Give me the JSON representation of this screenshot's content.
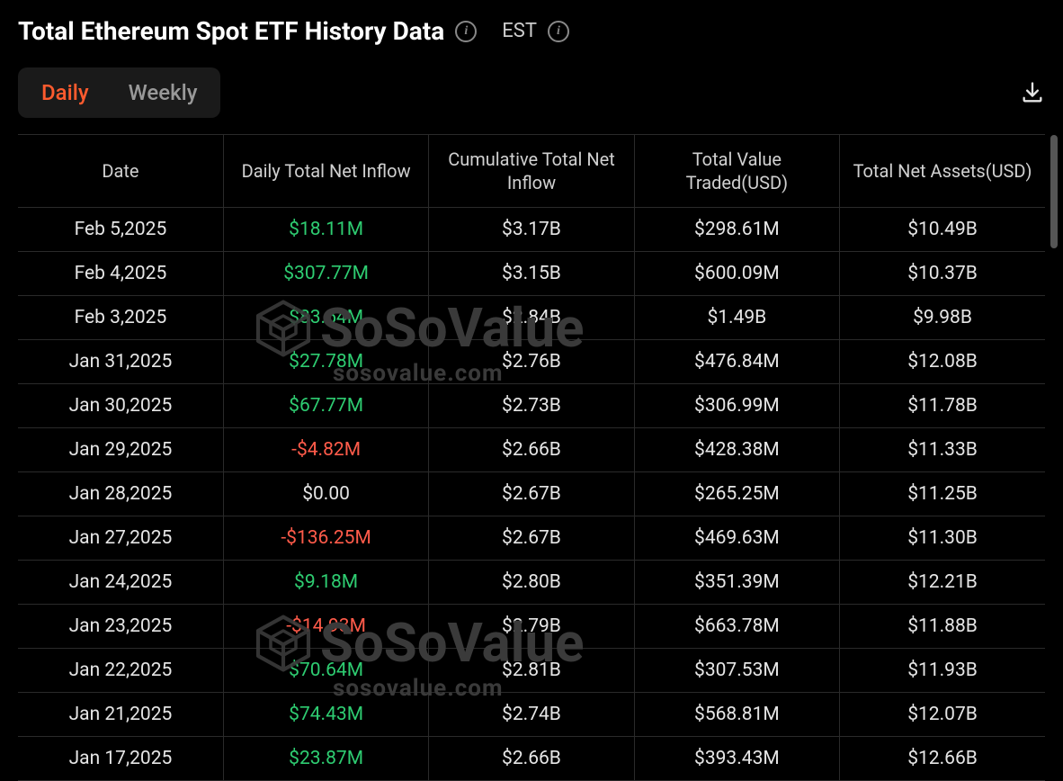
{
  "header": {
    "title": "Total Ethereum Spot ETF History Data",
    "timezone": "EST"
  },
  "tabs": {
    "daily": "Daily",
    "weekly": "Weekly",
    "active": "daily"
  },
  "table": {
    "type": "table",
    "colors": {
      "background": "#000000",
      "text": "#e5e5e5",
      "positive": "#2ecc71",
      "negative": "#ff5b4a",
      "border": "#2a2a2a",
      "accent": "#ff5b2e"
    },
    "columns": [
      "Date",
      "Daily Total Net Inflow",
      "Cumulative Total Net Inflow",
      "Total Value Traded(USD)",
      "Total Net Assets(USD)"
    ],
    "column_widths": [
      "20%",
      "20%",
      "20%",
      "20%",
      "20%"
    ],
    "rows": [
      {
        "date": "Feb 5,2025",
        "inflow": "$18.11M",
        "inflow_dir": "pos",
        "cum": "$3.17B",
        "traded": "$298.61M",
        "assets": "$10.49B"
      },
      {
        "date": "Feb 4,2025",
        "inflow": "$307.77M",
        "inflow_dir": "pos",
        "cum": "$3.15B",
        "traded": "$600.09M",
        "assets": "$10.37B"
      },
      {
        "date": "Feb 3,2025",
        "inflow": "$83.54M",
        "inflow_dir": "pos",
        "cum": "$2.84B",
        "traded": "$1.49B",
        "assets": "$9.98B"
      },
      {
        "date": "Jan 31,2025",
        "inflow": "$27.78M",
        "inflow_dir": "pos",
        "cum": "$2.76B",
        "traded": "$476.84M",
        "assets": "$12.08B"
      },
      {
        "date": "Jan 30,2025",
        "inflow": "$67.77M",
        "inflow_dir": "pos",
        "cum": "$2.73B",
        "traded": "$306.99M",
        "assets": "$11.78B"
      },
      {
        "date": "Jan 29,2025",
        "inflow": "-$4.82M",
        "inflow_dir": "neg",
        "cum": "$2.66B",
        "traded": "$428.38M",
        "assets": "$11.33B"
      },
      {
        "date": "Jan 28,2025",
        "inflow": "$0.00",
        "inflow_dir": "",
        "cum": "$2.67B",
        "traded": "$265.25M",
        "assets": "$11.25B"
      },
      {
        "date": "Jan 27,2025",
        "inflow": "-$136.25M",
        "inflow_dir": "neg",
        "cum": "$2.67B",
        "traded": "$469.63M",
        "assets": "$11.30B"
      },
      {
        "date": "Jan 24,2025",
        "inflow": "$9.18M",
        "inflow_dir": "pos",
        "cum": "$2.80B",
        "traded": "$351.39M",
        "assets": "$12.21B"
      },
      {
        "date": "Jan 23,2025",
        "inflow": "-$14.93M",
        "inflow_dir": "neg",
        "cum": "$2.79B",
        "traded": "$663.78M",
        "assets": "$11.88B"
      },
      {
        "date": "Jan 22,2025",
        "inflow": "$70.64M",
        "inflow_dir": "pos",
        "cum": "$2.81B",
        "traded": "$307.53M",
        "assets": "$11.93B"
      },
      {
        "date": "Jan 21,2025",
        "inflow": "$74.43M",
        "inflow_dir": "pos",
        "cum": "$2.74B",
        "traded": "$568.81M",
        "assets": "$12.07B"
      },
      {
        "date": "Jan 17,2025",
        "inflow": "$23.87M",
        "inflow_dir": "pos",
        "cum": "$2.66B",
        "traded": "$393.43M",
        "assets": "$12.66B"
      }
    ]
  },
  "watermark": {
    "brand": "SoSoValue",
    "url": "sosovalue.com"
  }
}
